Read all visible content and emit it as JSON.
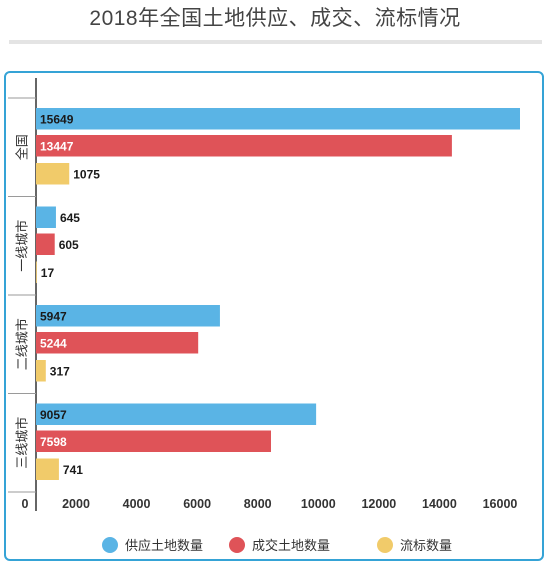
{
  "chart_data": {
    "type": "bar",
    "title": "2018年全国土地供应、成交、流标情况",
    "orientation": "horizontal",
    "categories": [
      "全国",
      "一线城市",
      "二线城市",
      "三线城市"
    ],
    "series": [
      {
        "name": "供应土地数量",
        "color": "#5ab4e5",
        "values": [
          15649,
          645,
          5947,
          9057
        ]
      },
      {
        "name": "成交土地数量",
        "color": "#df5358",
        "values": [
          13447,
          605,
          5244,
          7598
        ]
      },
      {
        "name": "流标数量",
        "color": "#f1cb6a",
        "values": [
          1075,
          17,
          317,
          741
        ]
      }
    ],
    "xlim": [
      0,
      16000
    ],
    "xticks": [
      0,
      2000,
      4000,
      6000,
      8000,
      10000,
      12000,
      14000,
      16000
    ],
    "xlabel": "",
    "ylabel": "",
    "legend_position": "bottom",
    "grid": false
  }
}
